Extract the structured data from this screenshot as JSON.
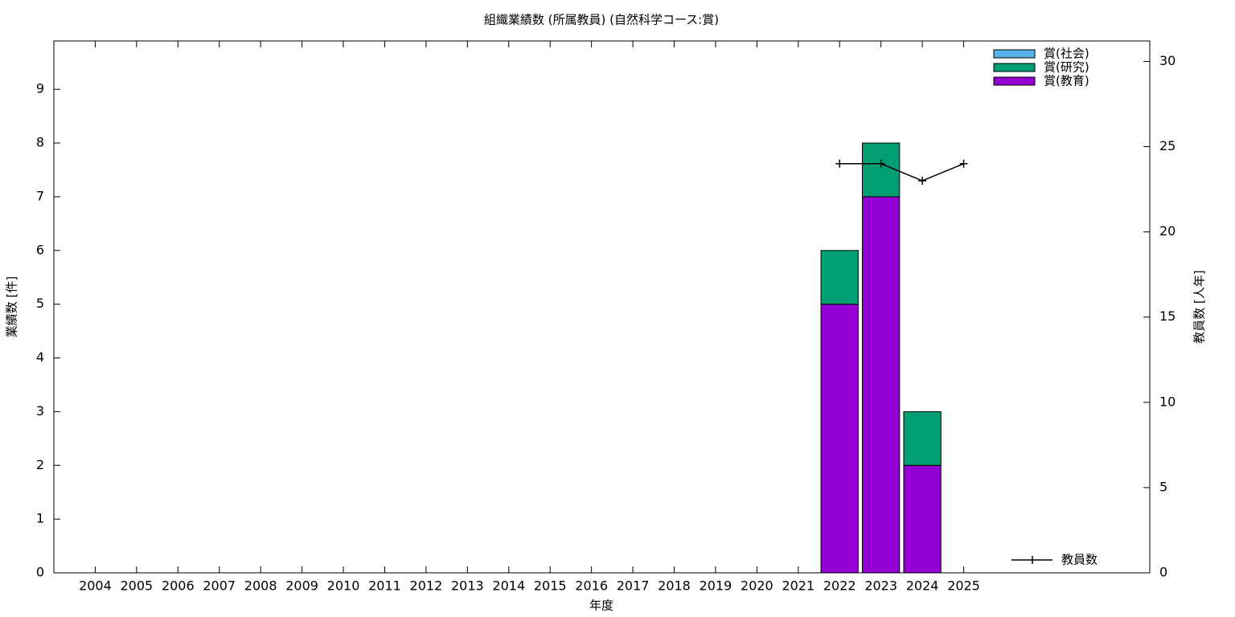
{
  "chart_data": {
    "type": "bar",
    "stacked": true,
    "title": "組織業績数 (所属教員) (自然科学コース:賞)",
    "xlabel": "年度",
    "ylabel": "業績数 [件]",
    "y2label": "教員数 [人年]",
    "categories": [
      "2004",
      "2005",
      "2006",
      "2007",
      "2008",
      "2009",
      "2010",
      "2011",
      "2012",
      "2013",
      "2014",
      "2015",
      "2016",
      "2017",
      "2018",
      "2019",
      "2020",
      "2021",
      "2022",
      "2023",
      "2024",
      "2025"
    ],
    "series": [
      {
        "name": "賞(社会)",
        "color": "#56b4e9",
        "values": [
          0,
          0,
          0,
          0,
          0,
          0,
          0,
          0,
          0,
          0,
          0,
          0,
          0,
          0,
          0,
          0,
          0,
          0,
          0,
          0,
          0,
          0
        ]
      },
      {
        "name": "賞(研究)",
        "color": "#009e73",
        "values": [
          0,
          0,
          0,
          0,
          0,
          0,
          0,
          0,
          0,
          0,
          0,
          0,
          0,
          0,
          0,
          0,
          0,
          0,
          1,
          1,
          1,
          0
        ]
      },
      {
        "name": "賞(教育)",
        "color": "#9400d3",
        "values": [
          0,
          0,
          0,
          0,
          0,
          0,
          0,
          0,
          0,
          0,
          0,
          0,
          0,
          0,
          0,
          0,
          0,
          0,
          5,
          7,
          2,
          0
        ]
      },
      {
        "name": "教員数",
        "type": "line",
        "axis": "y2",
        "color": "#000000",
        "values": [
          null,
          null,
          null,
          null,
          null,
          null,
          null,
          null,
          null,
          null,
          null,
          null,
          null,
          null,
          null,
          null,
          null,
          null,
          24,
          24,
          23,
          24
        ]
      }
    ],
    "ylim": [
      0,
      9.9
    ],
    "yticks": [
      0,
      1,
      2,
      3,
      4,
      5,
      6,
      7,
      8,
      9
    ],
    "y2lim": [
      0,
      31.2
    ],
    "y2ticks": [
      0,
      5,
      10,
      15,
      20,
      25,
      30
    ]
  }
}
